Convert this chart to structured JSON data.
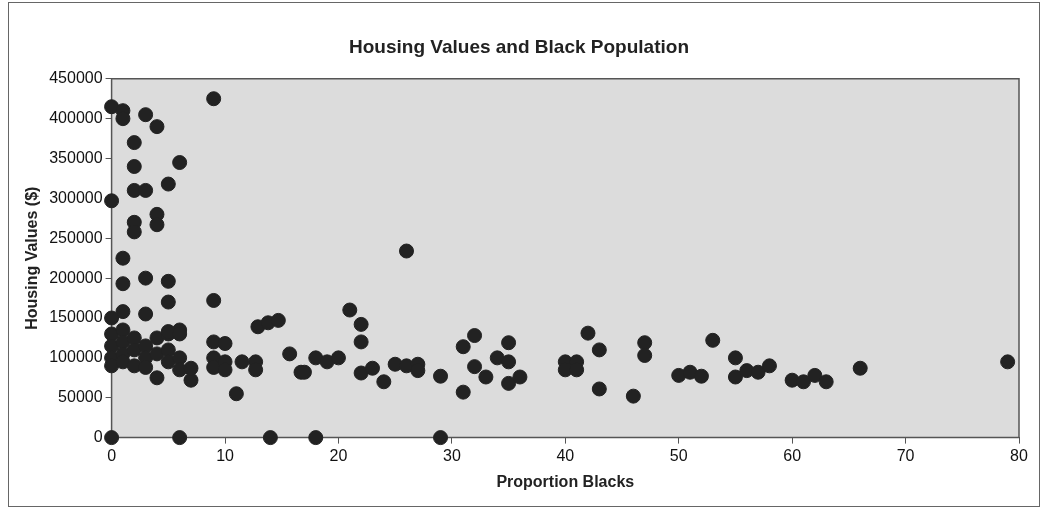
{
  "chart_data": {
    "type": "scatter",
    "title": "Housing Values and Black Population",
    "xlabel": "Proportion Blacks",
    "ylabel": "Housing Values ($)",
    "xlim": [
      0,
      80
    ],
    "xticks": [
      0,
      10,
      20,
      30,
      40,
      50,
      60,
      70,
      80
    ],
    "ylim": [
      0,
      450000
    ],
    "yticks": [
      0,
      50000,
      100000,
      150000,
      200000,
      250000,
      300000,
      350000,
      400000,
      450000
    ],
    "grid": false,
    "legend": false,
    "marker": "circle",
    "series": [
      {
        "color": "#222222",
        "x": [
          0,
          1,
          1,
          3,
          4,
          9,
          2,
          6,
          2,
          2,
          3,
          5,
          0,
          2,
          2,
          4,
          4,
          1,
          1,
          3,
          5,
          9,
          5,
          1,
          3,
          0,
          0,
          0,
          0,
          0,
          1,
          1,
          1,
          1,
          2,
          2,
          2,
          3,
          3,
          3,
          4,
          4,
          4,
          5,
          5,
          5,
          6,
          6,
          6,
          5,
          6,
          7,
          7,
          9,
          9,
          9,
          10,
          10,
          10,
          11,
          11.5,
          12.7,
          12.7,
          12.9,
          13.8,
          14.7,
          15.7,
          16.7,
          0,
          6,
          14,
          26,
          21,
          22,
          22,
          17,
          18,
          19,
          20,
          22,
          23,
          24,
          25,
          26,
          27,
          27,
          29,
          31,
          32,
          31,
          32,
          33,
          34,
          35,
          35,
          35,
          36,
          40,
          40,
          41,
          41,
          42,
          43,
          43,
          46,
          47,
          47,
          53,
          50,
          51,
          52,
          55,
          55,
          56,
          57,
          58,
          60,
          61,
          62,
          63,
          66,
          79,
          18,
          29
        ],
        "values": [
          415000,
          410000,
          400000,
          405000,
          390000,
          425000,
          370000,
          345000,
          340000,
          310000,
          310000,
          318000,
          297000,
          270000,
          258000,
          280000,
          267000,
          225000,
          193000,
          200000,
          196000,
          172000,
          170000,
          158000,
          155000,
          150000,
          130000,
          115000,
          100000,
          90000,
          135000,
          120000,
          105000,
          95000,
          125000,
          110000,
          90000,
          115000,
          100000,
          88000,
          125000,
          105000,
          75000,
          130000,
          110000,
          95000,
          135000,
          100000,
          85000,
          133000,
          130000,
          72000,
          87000,
          120000,
          100000,
          88000,
          118000,
          95000,
          85000,
          55000,
          95000,
          95000,
          85000,
          139000,
          144000,
          147000,
          105000,
          82000,
          0,
          0,
          0,
          234000,
          160000,
          142000,
          120000,
          82000,
          100000,
          95000,
          100000,
          81000,
          87000,
          70000,
          92000,
          90000,
          92000,
          84000,
          77000,
          114000,
          128000,
          57000,
          89000,
          76000,
          100000,
          119000,
          95000,
          68000,
          76000,
          95000,
          85000,
          95000,
          85000,
          131000,
          110000,
          61000,
          52000,
          119000,
          103000,
          122000,
          78000,
          82000,
          77000,
          100000,
          76000,
          84000,
          82000,
          90000,
          72000,
          70000,
          78000,
          70000,
          87000,
          95000,
          0,
          0
        ]
      }
    ]
  }
}
